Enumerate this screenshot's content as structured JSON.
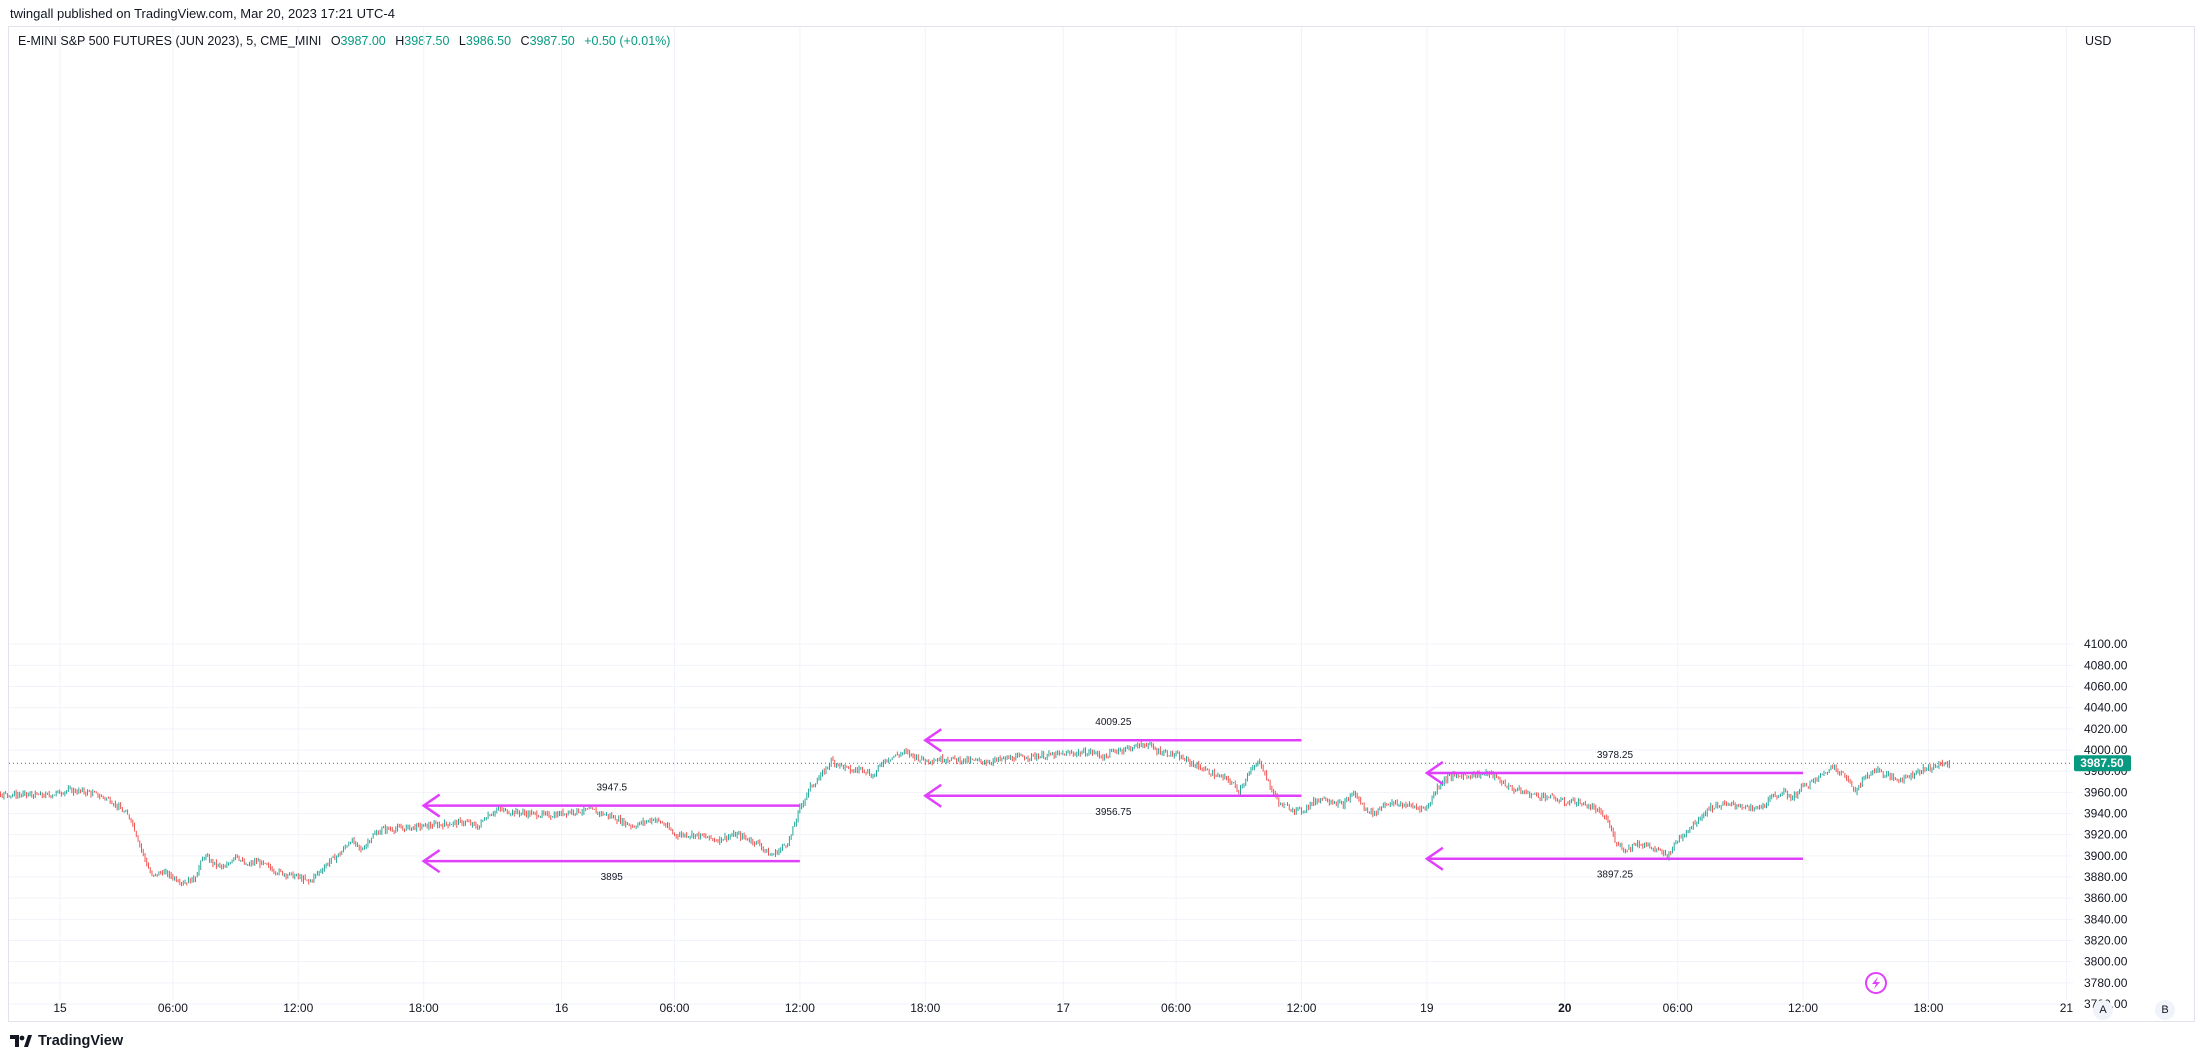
{
  "header": {
    "publisher": "twingall published on TradingView.com, Mar 20, 2023 17:21 UTC-4"
  },
  "legend": {
    "symbol": "E-MINI S&P 500 FUTURES (JUN 2023), 5, CME_MINI",
    "open_key": "O",
    "open": "3987.00",
    "high_key": "H",
    "high": "3987.50",
    "low_key": "L",
    "low": "3986.50",
    "close_key": "C",
    "close": "3987.50",
    "change": "+0.50 (+0.01%)"
  },
  "axis": {
    "currency": "USD",
    "auto_label": "A",
    "log_label": "B"
  },
  "footer": {
    "brand": "TradingView"
  },
  "colors": {
    "up": "#26a69a",
    "down": "#ef5350",
    "annotation": "#e040fb",
    "last_price_bg": "#089981",
    "grid": "#f0f3fa",
    "axis_text": "#131722"
  },
  "chart_data": {
    "type": "candlestick",
    "symbol": "E-MINI S&P 500 FUTURES (JUN 2023)",
    "interval": "5",
    "ylim": [
      3755,
      4130
    ],
    "y_ticks": [
      "4100.00",
      "4080.00",
      "4060.00",
      "4040.00",
      "4020.00",
      "4000.00",
      "3980.00",
      "3960.00",
      "3940.00",
      "3920.00",
      "3900.00",
      "3880.00",
      "3860.00",
      "3840.00",
      "3820.00",
      "3800.00",
      "3780.00",
      "3760.00"
    ],
    "x_ticks": [
      {
        "label": "15",
        "t": 14.6,
        "bold": false
      },
      {
        "label": "06:00",
        "t": 20,
        "bold": false
      },
      {
        "label": "12:00",
        "t": 26,
        "bold": false
      },
      {
        "label": "18:00",
        "t": 32,
        "bold": false
      },
      {
        "label": "16",
        "t": 38.6,
        "bold": false
      },
      {
        "label": "06:00",
        "t": 44,
        "bold": false
      },
      {
        "label": "12:00",
        "t": 50,
        "bold": false
      },
      {
        "label": "18:00",
        "t": 56,
        "bold": false
      },
      {
        "label": "17",
        "t": 62.6,
        "bold": false
      },
      {
        "label": "06:00",
        "t": 68,
        "bold": false
      },
      {
        "label": "12:00",
        "t": 74,
        "bold": false
      },
      {
        "label": "19",
        "t": 80,
        "bold": false
      },
      {
        "label": "20",
        "t": 86.6,
        "bold": true
      },
      {
        "label": "06:00",
        "t": 92,
        "bold": false
      },
      {
        "label": "12:00",
        "t": 98,
        "bold": false
      },
      {
        "label": "18:00",
        "t": 104,
        "bold": false
      },
      {
        "label": "21",
        "t": 110.6,
        "bold": false
      }
    ],
    "price_path": [
      [
        8,
        3951
      ],
      [
        10,
        3963
      ],
      [
        12,
        3958
      ],
      [
        14,
        3957
      ],
      [
        14.6,
        3960
      ],
      [
        15,
        3962
      ],
      [
        16,
        3960
      ],
      [
        17,
        3953
      ],
      [
        18,
        3935
      ],
      [
        18.6,
        3900
      ],
      [
        19,
        3880
      ],
      [
        19.5,
        3885
      ],
      [
        20,
        3880
      ],
      [
        20.5,
        3875
      ],
      [
        21,
        3878
      ],
      [
        21.5,
        3900
      ],
      [
        22,
        3892
      ],
      [
        22.5,
        3888
      ],
      [
        23,
        3902
      ],
      [
        23.5,
        3890
      ],
      [
        24,
        3895
      ],
      [
        25,
        3885
      ],
      [
        26,
        3880
      ],
      [
        26.5,
        3875
      ],
      [
        27,
        3885
      ],
      [
        27.5,
        3895
      ],
      [
        28,
        3902
      ],
      [
        28.5,
        3915
      ],
      [
        29,
        3905
      ],
      [
        29.5,
        3918
      ],
      [
        30,
        3925
      ],
      [
        31,
        3926
      ],
      [
        32,
        3928
      ],
      [
        33,
        3930
      ],
      [
        34,
        3932
      ],
      [
        34.6,
        3927
      ],
      [
        35,
        3938
      ],
      [
        35.6,
        3944
      ],
      [
        36,
        3942
      ],
      [
        37,
        3940
      ],
      [
        38,
        3938
      ],
      [
        38.6,
        3940
      ],
      [
        39,
        3942
      ],
      [
        40,
        3943
      ],
      [
        41,
        3937
      ],
      [
        42,
        3928
      ],
      [
        43,
        3935
      ],
      [
        43.5,
        3930
      ],
      [
        44,
        3920
      ],
      [
        45,
        3920
      ],
      [
        46,
        3915
      ],
      [
        46.5,
        3918
      ],
      [
        47,
        3920
      ],
      [
        48,
        3912
      ],
      [
        48.6,
        3900
      ],
      [
        49,
        3905
      ],
      [
        49.5,
        3915
      ],
      [
        50,
        3945
      ],
      [
        50.5,
        3965
      ],
      [
        51,
        3975
      ],
      [
        51.5,
        3990
      ],
      [
        52,
        3985
      ],
      [
        52.5,
        3980
      ],
      [
        53,
        3983
      ],
      [
        53.5,
        3975
      ],
      [
        54,
        3990
      ],
      [
        55,
        3998
      ],
      [
        56,
        3990
      ],
      [
        57,
        3992
      ],
      [
        58,
        3990
      ],
      [
        59,
        3989
      ],
      [
        60,
        3992
      ],
      [
        61,
        3994
      ],
      [
        62,
        3995
      ],
      [
        63,
        3997
      ],
      [
        64,
        3998
      ],
      [
        64.6,
        3993
      ],
      [
        65,
        3999
      ],
      [
        66,
        4003
      ],
      [
        66.6,
        4006
      ],
      [
        67,
        4000
      ],
      [
        68,
        3995
      ],
      [
        69,
        3985
      ],
      [
        70,
        3975
      ],
      [
        70.5,
        3972
      ],
      [
        71,
        3962
      ],
      [
        71.5,
        3978
      ],
      [
        72,
        3990
      ],
      [
        72.5,
        3965
      ],
      [
        73,
        3948
      ],
      [
        74,
        3942
      ],
      [
        74.5,
        3950
      ],
      [
        75,
        3955
      ],
      [
        76,
        3948
      ],
      [
        76.5,
        3960
      ],
      [
        77,
        3945
      ],
      [
        77.5,
        3940
      ],
      [
        78,
        3950
      ],
      [
        79,
        3948
      ],
      [
        79.5,
        3946
      ],
      [
        80,
        3945
      ],
      [
        80.5,
        3965
      ],
      [
        81,
        3975
      ],
      [
        82,
        3976
      ],
      [
        83,
        3978
      ],
      [
        84,
        3964
      ],
      [
        85,
        3958
      ],
      [
        86,
        3955
      ],
      [
        86.6,
        3950
      ],
      [
        87,
        3952
      ],
      [
        88,
        3945
      ],
      [
        88.6,
        3935
      ],
      [
        89,
        3915
      ],
      [
        89.5,
        3905
      ],
      [
        90,
        3912
      ],
      [
        90.5,
        3910
      ],
      [
        91,
        3905
      ],
      [
        91.5,
        3900
      ],
      [
        92,
        3915
      ],
      [
        92.5,
        3925
      ],
      [
        93,
        3935
      ],
      [
        93.5,
        3945
      ],
      [
        94,
        3948
      ],
      [
        95,
        3948
      ],
      [
        95.5,
        3944
      ],
      [
        96,
        3946
      ],
      [
        96.5,
        3955
      ],
      [
        97,
        3960
      ],
      [
        97.5,
        3955
      ],
      [
        98,
        3966
      ],
      [
        98.5,
        3970
      ],
      [
        99,
        3978
      ],
      [
        99.5,
        3985
      ],
      [
        100,
        3975
      ],
      [
        100.5,
        3962
      ],
      [
        101,
        3975
      ],
      [
        101.5,
        3982
      ],
      [
        102,
        3976
      ],
      [
        102.5,
        3972
      ],
      [
        103,
        3975
      ],
      [
        103.5,
        3980
      ],
      [
        104,
        3983
      ],
      [
        104.5,
        3986
      ],
      [
        105,
        3987.5
      ]
    ],
    "last_price": 3987.5,
    "last_price_label": "3987.50",
    "annotations": [
      {
        "kind": "arrow-left",
        "price": 3947.5,
        "t_start": 32,
        "t_end": 50,
        "label": "3947.5",
        "label_pos": "above"
      },
      {
        "kind": "arrow-left",
        "price": 3895,
        "t_start": 32,
        "t_end": 50,
        "label": "3895",
        "label_pos": "below"
      },
      {
        "kind": "arrow-left",
        "price": 4009.25,
        "t_start": 56,
        "t_end": 74,
        "label": "4009.25",
        "label_pos": "above"
      },
      {
        "kind": "arrow-left",
        "price": 3956.75,
        "t_start": 56,
        "t_end": 74,
        "label": "3956.75",
        "label_pos": "below"
      },
      {
        "kind": "arrow-left",
        "price": 3978.25,
        "t_start": 80,
        "t_end": 98,
        "label": "3978.25",
        "label_pos": "above"
      },
      {
        "kind": "arrow-left",
        "price": 3897.25,
        "t_start": 80,
        "t_end": 98,
        "label": "3897.25",
        "label_pos": "below"
      }
    ]
  }
}
